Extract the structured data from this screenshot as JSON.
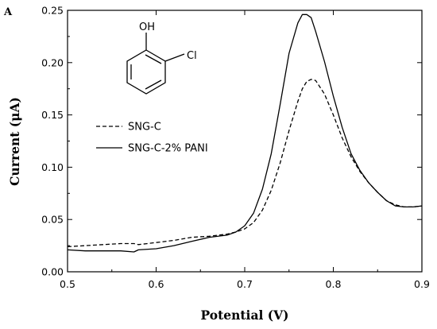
{
  "panel_label": "A",
  "molecule": {
    "oh_label": "OH",
    "cl_label": "Cl"
  },
  "chart_data": {
    "type": "line",
    "title": "",
    "xlabel": "Potential (V)",
    "ylabel": "Current (μA)",
    "xlim": [
      0.5,
      0.9
    ],
    "ylim": [
      0.0,
      0.25
    ],
    "xticks": [
      "0.5",
      "0.6",
      "0.7",
      "0.8",
      "0.9"
    ],
    "yticks": [
      "0.00",
      "0.05",
      "0.10",
      "0.15",
      "0.20",
      "0.25"
    ],
    "grid": false,
    "legend_position": "middle-left",
    "series": [
      {
        "name": "SNG-C",
        "style": "dashed",
        "color": "#000000",
        "x": [
          0.5,
          0.52,
          0.54,
          0.56,
          0.575,
          0.58,
          0.6,
          0.62,
          0.64,
          0.66,
          0.68,
          0.69,
          0.7,
          0.71,
          0.72,
          0.73,
          0.74,
          0.75,
          0.76,
          0.765,
          0.77,
          0.775,
          0.78,
          0.79,
          0.8,
          0.81,
          0.82,
          0.83,
          0.84,
          0.85,
          0.86,
          0.87,
          0.88,
          0.89,
          0.9
        ],
        "y": [
          0.024,
          0.025,
          0.026,
          0.027,
          0.027,
          0.026,
          0.028,
          0.03,
          0.033,
          0.034,
          0.036,
          0.038,
          0.041,
          0.047,
          0.059,
          0.078,
          0.104,
          0.135,
          0.163,
          0.175,
          0.182,
          0.184,
          0.183,
          0.17,
          0.15,
          0.128,
          0.11,
          0.096,
          0.085,
          0.076,
          0.068,
          0.064,
          0.062,
          0.062,
          0.063
        ]
      },
      {
        "name": "SNG-C-2% PANI",
        "style": "solid",
        "color": "#000000",
        "x": [
          0.5,
          0.52,
          0.54,
          0.56,
          0.575,
          0.58,
          0.6,
          0.62,
          0.64,
          0.66,
          0.68,
          0.69,
          0.7,
          0.71,
          0.72,
          0.73,
          0.74,
          0.75,
          0.76,
          0.765,
          0.77,
          0.775,
          0.78,
          0.79,
          0.8,
          0.81,
          0.82,
          0.83,
          0.84,
          0.85,
          0.86,
          0.87,
          0.88,
          0.89,
          0.9
        ],
        "y": [
          0.021,
          0.02,
          0.02,
          0.02,
          0.019,
          0.021,
          0.022,
          0.025,
          0.029,
          0.033,
          0.035,
          0.038,
          0.044,
          0.056,
          0.079,
          0.113,
          0.16,
          0.209,
          0.238,
          0.246,
          0.246,
          0.243,
          0.23,
          0.201,
          0.168,
          0.138,
          0.113,
          0.097,
          0.085,
          0.076,
          0.068,
          0.063,
          0.062,
          0.062,
          0.063
        ]
      }
    ]
  }
}
